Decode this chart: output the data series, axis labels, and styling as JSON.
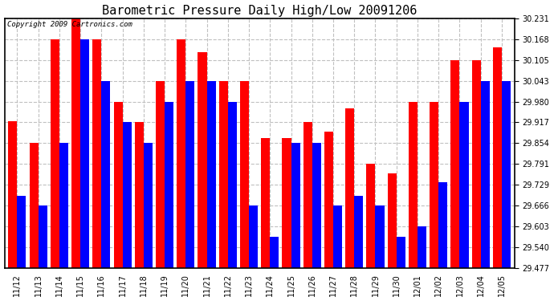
{
  "title": "Barometric Pressure Daily High/Low 20091206",
  "copyright": "Copyright 2009 Cartronics.com",
  "y_min": 29.477,
  "y_max": 30.231,
  "y_ticks": [
    30.231,
    30.168,
    30.105,
    30.043,
    29.98,
    29.917,
    29.854,
    29.791,
    29.729,
    29.666,
    29.603,
    29.54,
    29.477
  ],
  "dates": [
    "11/12",
    "11/13",
    "11/14",
    "11/15",
    "11/16",
    "11/17",
    "11/18",
    "11/19",
    "11/20",
    "11/21",
    "11/22",
    "11/23",
    "11/24",
    "11/25",
    "11/26",
    "11/27",
    "11/28",
    "11/29",
    "11/30",
    "12/01",
    "12/02",
    "12/03",
    "12/04",
    "12/05"
  ],
  "highs": [
    29.92,
    29.854,
    30.168,
    30.231,
    30.168,
    29.98,
    29.917,
    30.043,
    30.168,
    30.13,
    30.043,
    30.043,
    29.87,
    29.87,
    29.917,
    29.89,
    29.96,
    29.791,
    29.762,
    29.98,
    29.98,
    30.105,
    30.105,
    30.145
  ],
  "lows": [
    29.695,
    29.666,
    29.854,
    30.168,
    30.043,
    29.917,
    29.854,
    29.98,
    30.043,
    30.043,
    29.98,
    29.666,
    29.57,
    29.854,
    29.854,
    29.666,
    29.695,
    29.666,
    29.571,
    29.603,
    29.735,
    29.98,
    30.043,
    30.043
  ],
  "high_color": "#ff0000",
  "low_color": "#0000ff",
  "bg_color": "#ffffff",
  "grid_color": "#c0c0c0",
  "title_fontsize": 11,
  "tick_fontsize": 7,
  "copyright_fontsize": 6.5
}
